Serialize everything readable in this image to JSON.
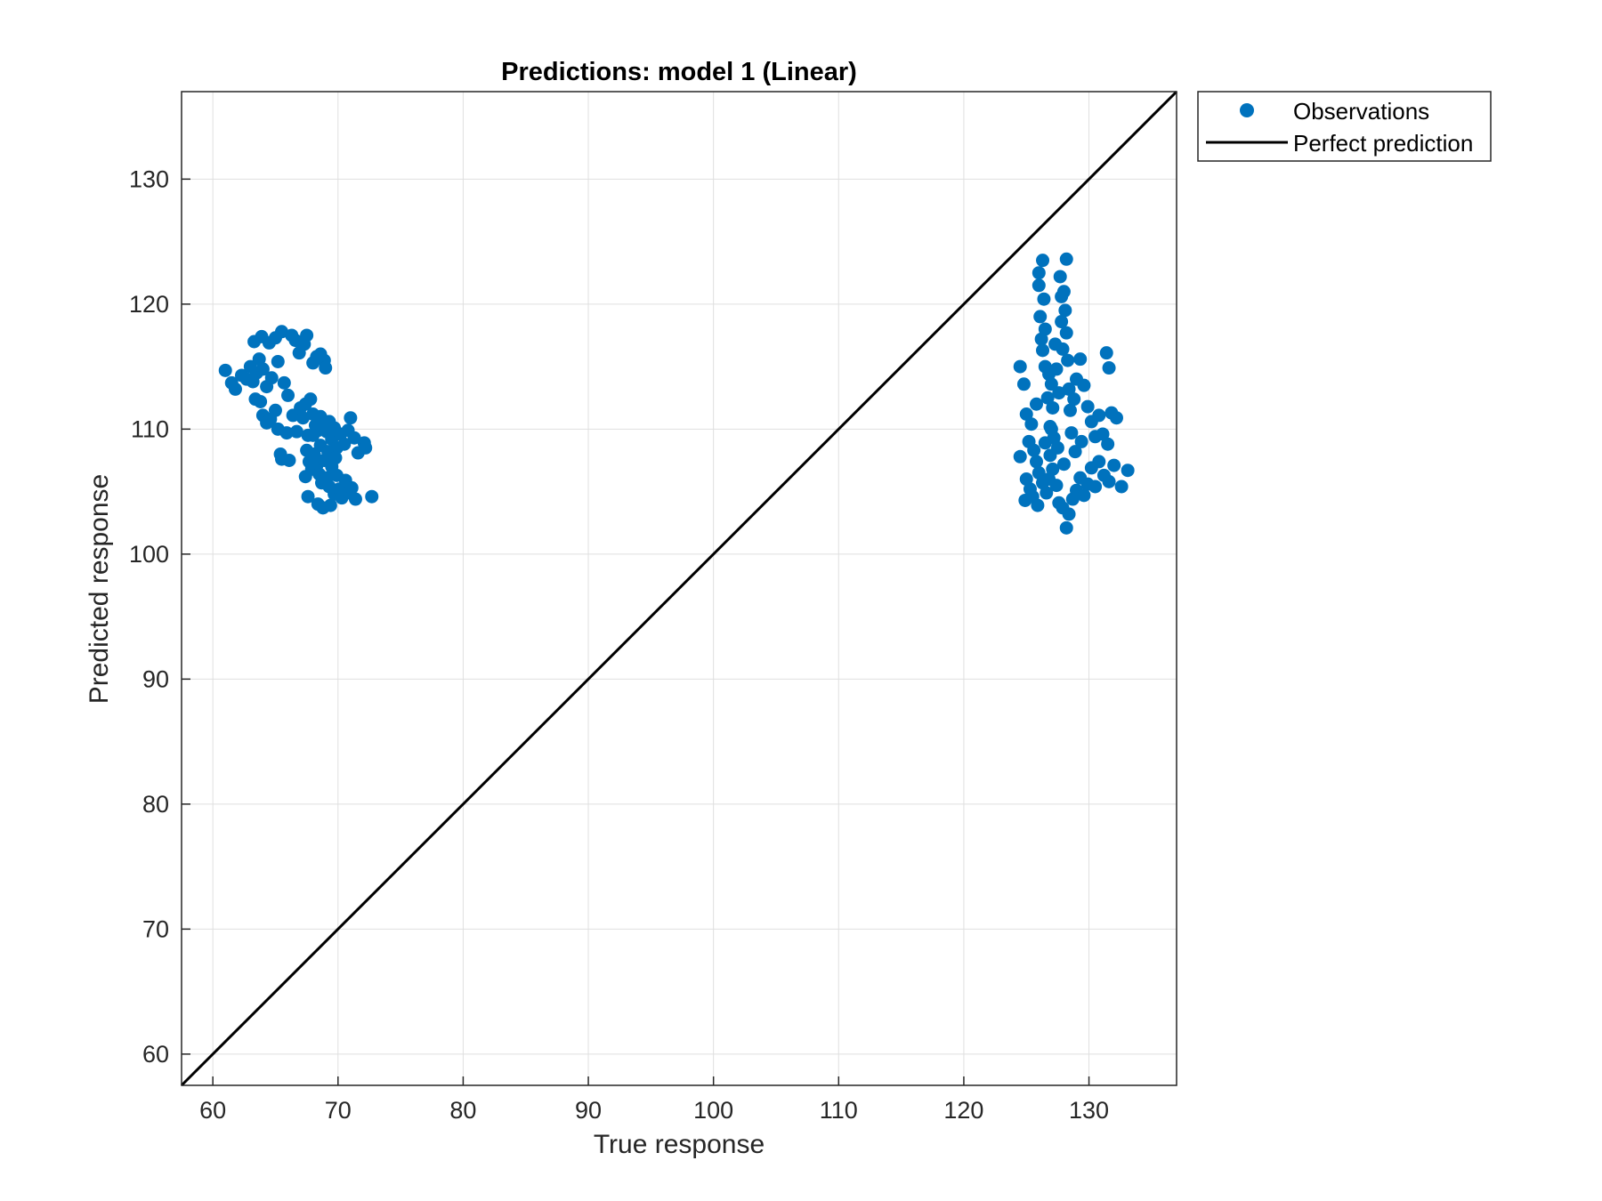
{
  "chart_data": {
    "type": "scatter",
    "title": "Predictions: model 1 (Linear)",
    "xlabel": "True response",
    "ylabel": "Predicted response",
    "xlim": [
      57.5,
      137
    ],
    "ylim": [
      57.5,
      137
    ],
    "xticks": [
      60,
      70,
      80,
      90,
      100,
      110,
      120,
      130
    ],
    "yticks": [
      60,
      70,
      80,
      90,
      100,
      110,
      120,
      130
    ],
    "grid": true,
    "legend_position": "outside-top-right",
    "colors": {
      "observations": "#0072BD",
      "perfect_line": "#000000",
      "grid": "#dfdfdf",
      "axis": "#262626"
    },
    "legend": [
      {
        "label": "Observations",
        "marker": "dot"
      },
      {
        "label": "Perfect prediction",
        "marker": "line"
      }
    ],
    "perfect_line": {
      "x": [
        57.5,
        137
      ],
      "y": [
        57.5,
        137
      ]
    },
    "series": [
      {
        "name": "Observations",
        "points": [
          [
            61.0,
            114.7
          ],
          [
            61.5,
            113.7
          ],
          [
            61.8,
            113.2
          ],
          [
            62.3,
            114.3
          ],
          [
            62.7,
            114.0
          ],
          [
            63.0,
            115.0
          ],
          [
            63.3,
            117.0
          ],
          [
            63.5,
            114.5
          ],
          [
            63.7,
            115.6
          ],
          [
            63.9,
            117.4
          ],
          [
            64.0,
            114.8
          ],
          [
            63.2,
            113.8
          ],
          [
            63.4,
            112.4
          ],
          [
            63.8,
            112.2
          ],
          [
            64.3,
            113.4
          ],
          [
            64.5,
            116.9
          ],
          [
            64.7,
            114.1
          ],
          [
            65.0,
            117.3
          ],
          [
            65.2,
            115.4
          ],
          [
            65.5,
            117.8
          ],
          [
            65.7,
            113.7
          ],
          [
            66.0,
            112.7
          ],
          [
            66.3,
            117.5
          ],
          [
            66.6,
            117.1
          ],
          [
            66.9,
            116.1
          ],
          [
            67.3,
            116.8
          ],
          [
            67.5,
            117.5
          ],
          [
            68.0,
            115.3
          ],
          [
            68.3,
            115.8
          ],
          [
            68.6,
            116.0
          ],
          [
            68.9,
            115.5
          ],
          [
            69.0,
            114.9
          ],
          [
            64.0,
            111.1
          ],
          [
            64.3,
            110.5
          ],
          [
            64.6,
            110.8
          ],
          [
            65.0,
            111.5
          ],
          [
            65.2,
            110.0
          ],
          [
            65.4,
            108.0
          ],
          [
            65.5,
            107.6
          ],
          [
            65.9,
            109.7
          ],
          [
            66.1,
            107.5
          ],
          [
            66.4,
            111.1
          ],
          [
            66.7,
            109.8
          ],
          [
            67.0,
            111.7
          ],
          [
            67.2,
            110.9
          ],
          [
            67.4,
            112.0
          ],
          [
            67.6,
            109.5
          ],
          [
            67.8,
            112.4
          ],
          [
            68.0,
            111.2
          ],
          [
            68.2,
            110.3
          ],
          [
            68.4,
            109.9
          ],
          [
            68.6,
            111.0
          ],
          [
            68.9,
            110.4
          ],
          [
            69.1,
            109.8
          ],
          [
            69.3,
            110.6
          ],
          [
            69.5,
            109.2
          ],
          [
            69.7,
            110.1
          ],
          [
            69.9,
            108.5
          ],
          [
            70.2,
            109.6
          ],
          [
            70.5,
            108.8
          ],
          [
            70.8,
            109.9
          ],
          [
            71.0,
            110.9
          ],
          [
            71.3,
            109.3
          ],
          [
            71.6,
            108.1
          ],
          [
            72.1,
            108.9
          ],
          [
            72.2,
            108.5
          ],
          [
            67.5,
            108.3
          ],
          [
            67.7,
            107.4
          ],
          [
            67.9,
            106.8
          ],
          [
            68.1,
            108.0
          ],
          [
            68.3,
            107.1
          ],
          [
            68.5,
            106.4
          ],
          [
            68.7,
            105.7
          ],
          [
            68.9,
            107.5
          ],
          [
            69.1,
            106.1
          ],
          [
            69.3,
            105.4
          ],
          [
            69.5,
            107.0
          ],
          [
            69.7,
            104.8
          ],
          [
            69.9,
            106.3
          ],
          [
            70.1,
            105.2
          ],
          [
            70.3,
            104.5
          ],
          [
            70.6,
            105.9
          ],
          [
            70.9,
            104.9
          ],
          [
            71.1,
            105.3
          ],
          [
            71.4,
            104.4
          ],
          [
            67.6,
            104.6
          ],
          [
            68.4,
            104.0
          ],
          [
            68.8,
            103.7
          ],
          [
            69.4,
            103.9
          ],
          [
            72.7,
            104.6
          ],
          [
            67.4,
            106.2
          ],
          [
            68.0,
            109.5
          ],
          [
            68.6,
            108.7
          ],
          [
            69.2,
            108.2
          ],
          [
            69.8,
            107.7
          ],
          [
            124.5,
            115.0
          ],
          [
            124.8,
            113.6
          ],
          [
            125.0,
            111.2
          ],
          [
            125.2,
            109.0
          ],
          [
            125.4,
            110.4
          ],
          [
            125.6,
            108.3
          ],
          [
            125.8,
            112.0
          ],
          [
            126.0,
            122.5
          ],
          [
            126.0,
            121.5
          ],
          [
            126.1,
            119.0
          ],
          [
            126.2,
            117.2
          ],
          [
            126.3,
            123.5
          ],
          [
            126.3,
            116.3
          ],
          [
            126.4,
            120.4
          ],
          [
            126.5,
            115.0
          ],
          [
            126.5,
            118.0
          ],
          [
            126.7,
            112.5
          ],
          [
            126.8,
            114.4
          ],
          [
            126.9,
            110.2
          ],
          [
            127.0,
            113.6
          ],
          [
            127.1,
            111.7
          ],
          [
            127.2,
            109.3
          ],
          [
            127.3,
            116.8
          ],
          [
            127.4,
            114.8
          ],
          [
            127.6,
            112.9
          ],
          [
            127.7,
            122.2
          ],
          [
            127.8,
            120.6
          ],
          [
            127.8,
            118.6
          ],
          [
            127.9,
            116.4
          ],
          [
            128.0,
            121.0
          ],
          [
            128.1,
            119.5
          ],
          [
            128.2,
            123.6
          ],
          [
            128.2,
            117.7
          ],
          [
            128.3,
            115.5
          ],
          [
            128.4,
            113.2
          ],
          [
            128.5,
            111.5
          ],
          [
            128.6,
            109.7
          ],
          [
            128.8,
            112.4
          ],
          [
            129.0,
            114.0
          ],
          [
            129.3,
            115.6
          ],
          [
            129.6,
            113.5
          ],
          [
            129.9,
            111.8
          ],
          [
            130.2,
            110.6
          ],
          [
            130.5,
            109.4
          ],
          [
            130.8,
            111.1
          ],
          [
            131.1,
            109.6
          ],
          [
            131.5,
            108.8
          ],
          [
            131.8,
            111.3
          ],
          [
            132.2,
            110.9
          ],
          [
            131.4,
            116.1
          ],
          [
            131.6,
            114.9
          ],
          [
            125.0,
            106.0
          ],
          [
            125.3,
            105.2
          ],
          [
            125.5,
            104.6
          ],
          [
            125.8,
            107.4
          ],
          [
            126.0,
            106.5
          ],
          [
            126.3,
            105.7
          ],
          [
            126.6,
            104.9
          ],
          [
            126.9,
            107.9
          ],
          [
            127.1,
            106.8
          ],
          [
            127.4,
            105.5
          ],
          [
            127.6,
            104.1
          ],
          [
            127.9,
            103.7
          ],
          [
            128.2,
            102.1
          ],
          [
            128.4,
            103.2
          ],
          [
            128.7,
            104.4
          ],
          [
            129.0,
            105.1
          ],
          [
            129.3,
            106.1
          ],
          [
            129.6,
            104.7
          ],
          [
            129.9,
            105.6
          ],
          [
            130.2,
            106.9
          ],
          [
            130.5,
            105.4
          ],
          [
            130.8,
            107.4
          ],
          [
            131.2,
            106.3
          ],
          [
            131.6,
            105.8
          ],
          [
            132.0,
            107.1
          ],
          [
            132.6,
            105.4
          ],
          [
            133.1,
            106.7
          ],
          [
            124.5,
            107.8
          ],
          [
            124.9,
            104.3
          ],
          [
            127.5,
            108.5
          ],
          [
            128.0,
            107.2
          ],
          [
            126.5,
            108.9
          ],
          [
            127.0,
            110.0
          ],
          [
            128.9,
            108.2
          ],
          [
            129.4,
            109.0
          ],
          [
            125.9,
            103.9
          ],
          [
            126.8,
            106.0
          ]
        ]
      }
    ]
  }
}
